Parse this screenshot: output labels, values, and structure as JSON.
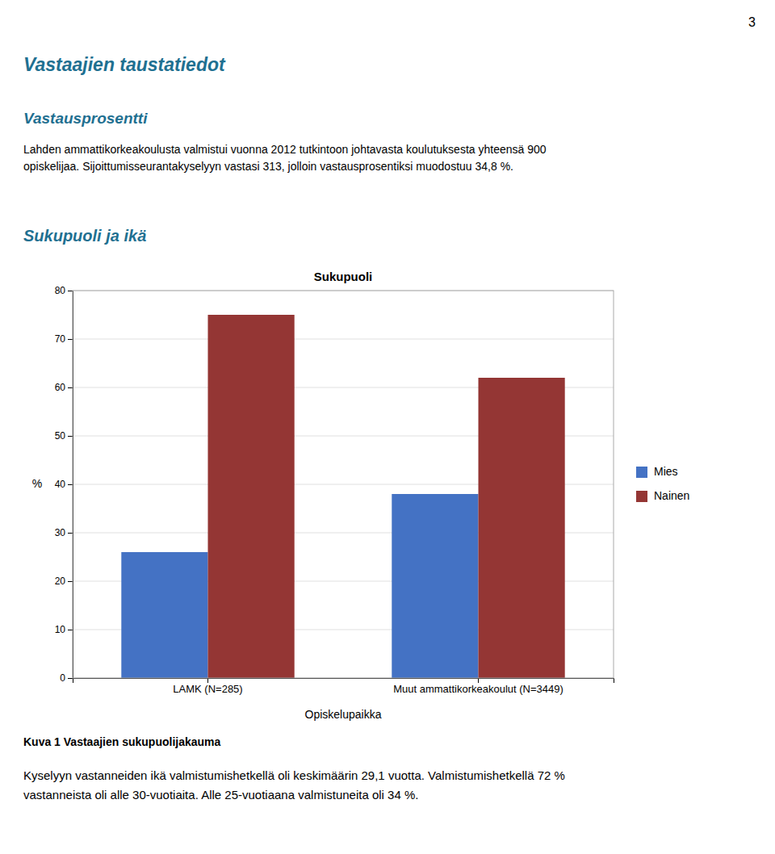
{
  "page_number": "3",
  "heading1": "Vastaajien taustatiedot",
  "heading2": "Vastausprosentti",
  "body": [
    "Lahden ammattikorkeakoulusta valmistui vuonna 2012 tutkintoon johtavasta koulutuksesta yhteensä 900",
    "opiskelijaa. Sijoittumisseurantakyselyyn vastasi 313, jolloin vastausprosentiksi muodostuu 34,8 %."
  ],
  "section_heading": "Sukupuoli ja ikä",
  "caption": "Kuva 1 Vastaajien sukupuolijakauma",
  "footer": [
    "Kyselyyn vastanneiden ikä valmistumishetkellä oli keskimäärin 29,1 vuotta. Valmistumishetkellä 72 %",
    "vastanneista oli alle 30-vuotiaita. Alle 25-vuotiaana valmistuneita oli 34 %."
  ],
  "chart_data": {
    "type": "bar",
    "title": "Sukupuoli",
    "categories": [
      "LAMK (N=285)",
      "Muut ammattikorkeakoulut (N=3449)"
    ],
    "xlabel": "Opiskelupaikka",
    "ylabel": "%",
    "series": [
      {
        "name": "Mies",
        "values": [
          26,
          38
        ],
        "color": "#4472C4"
      },
      {
        "name": "Nainen",
        "values": [
          75,
          62
        ],
        "color": "#943634"
      }
    ],
    "ylim": [
      0,
      80
    ],
    "yticks": [
      0,
      10,
      20,
      30,
      40,
      50,
      60,
      70,
      80
    ],
    "grid": true,
    "legend": "right"
  }
}
